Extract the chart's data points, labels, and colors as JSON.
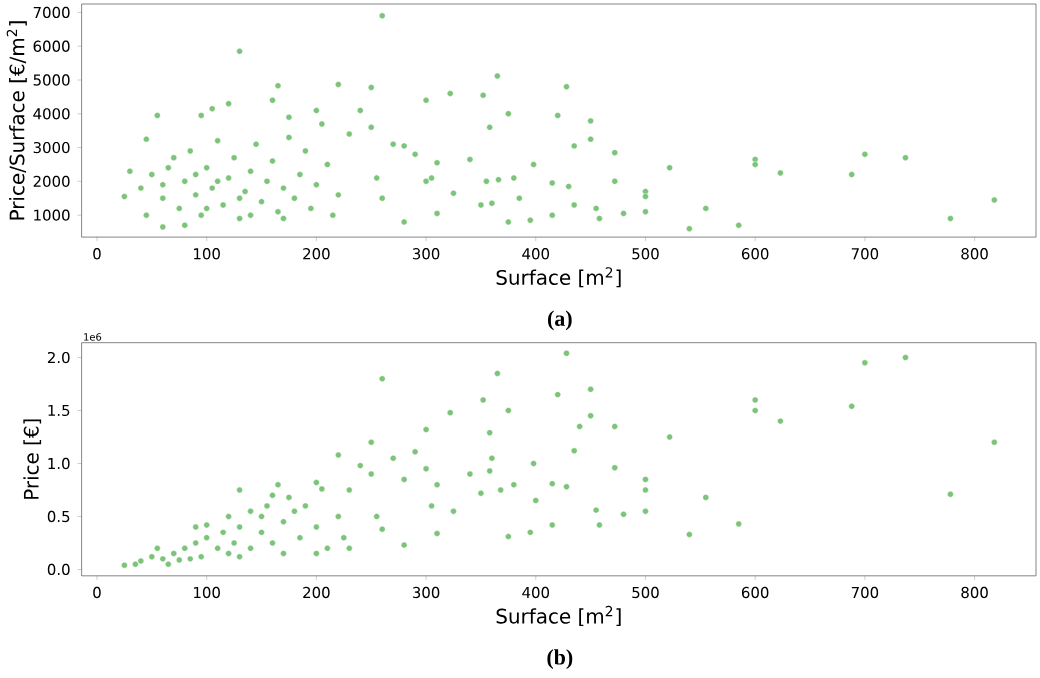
{
  "chart_data": [
    {
      "type": "scatter",
      "xlabel": "Surface [m$^{2}$]",
      "ylabel": "Price/Surface [€/m$^{2}$]",
      "annotations": [
        "(a)"
      ],
      "marker": "circle",
      "color": "#7cc47a",
      "xlim": [
        -14,
        856
      ],
      "ylim": [
        350,
        7250
      ],
      "xticks": [
        0,
        100,
        200,
        300,
        400,
        500,
        600,
        700,
        800
      ],
      "yticks": [
        1000,
        2000,
        3000,
        4000,
        5000,
        6000,
        7000
      ],
      "x": [
        260,
        130,
        365,
        428,
        220,
        250,
        165,
        322,
        300,
        352,
        450,
        450,
        435,
        420,
        375,
        358,
        472,
        472,
        522,
        600,
        600,
        623,
        688,
        700,
        737,
        818,
        778,
        585,
        540,
        555,
        500,
        500,
        500,
        480,
        458,
        455,
        415,
        395,
        375,
        398,
        415,
        430,
        435,
        385,
        380,
        366,
        355,
        350,
        360,
        340,
        310,
        305,
        300,
        310,
        280,
        290,
        325,
        270,
        280,
        240,
        230,
        255,
        260,
        250,
        200,
        205,
        160,
        175,
        55,
        45,
        95,
        105,
        120,
        25,
        30,
        60,
        80,
        40,
        50,
        60,
        70,
        75,
        80,
        85,
        90,
        95,
        100,
        105,
        110,
        115,
        120,
        125,
        130,
        135,
        140,
        145,
        150,
        155,
        160,
        165,
        170,
        175,
        180,
        185,
        190,
        195,
        200,
        210,
        215,
        220,
        45,
        65,
        100,
        140,
        170,
        110,
        130,
        90,
        60
      ],
      "values": [
        6900,
        5850,
        5120,
        4800,
        4870,
        4780,
        4830,
        4600,
        4400,
        4550,
        3790,
        3250,
        3050,
        3950,
        4000,
        3600,
        2850,
        2000,
        2400,
        2650,
        2500,
        2250,
        2200,
        2800,
        2700,
        1450,
        900,
        700,
        600,
        1200,
        1700,
        1550,
        1100,
        1050,
        900,
        1200,
        1000,
        850,
        800,
        2500,
        1950,
        1850,
        1300,
        1500,
        2100,
        2050,
        2000,
        1300,
        1350,
        2650,
        2550,
        2100,
        2000,
        1050,
        800,
        2800,
        1650,
        3100,
        3050,
        4100,
        3400,
        2100,
        1500,
        3600,
        4100,
        3700,
        4400,
        3900,
        3950,
        3250,
        3950,
        4150,
        4300,
        1550,
        2300,
        650,
        700,
        1800,
        2200,
        1500,
        2700,
        1200,
        2000,
        2900,
        1600,
        1000,
        2400,
        1800,
        3200,
        1300,
        2100,
        2700,
        900,
        1700,
        2300,
        3100,
        1400,
        2000,
        2600,
        1100,
        1800,
        3300,
        1500,
        2200,
        2900,
        1200,
        1900,
        2500,
        1000,
        1600,
        1000,
        2400,
        1200,
        1000,
        900,
        2000,
        1500,
        2200,
        1900
      ]
    },
    {
      "type": "scatter",
      "xlabel": "Surface [m$^{2}$]",
      "ylabel": "Price [€]",
      "annotations": [
        "1e6",
        "(b)"
      ],
      "marker": "circle",
      "color": "#7cc47a",
      "xlim": [
        -14,
        856
      ],
      "ylim": [
        -0.06,
        2.14
      ],
      "xticks": [
        0,
        100,
        200,
        300,
        400,
        500,
        600,
        700,
        800
      ],
      "yticks": [
        {
          "value": 0,
          "label": "0.0"
        },
        0.5,
        {
          "value": 1,
          "label": "1.0"
        },
        1.5,
        {
          "value": 2,
          "label": "2.0"
        }
      ],
      "x": [
        428,
        737,
        700,
        688,
        600,
        600,
        623,
        818,
        778,
        585,
        540,
        555,
        522,
        500,
        500,
        500,
        480,
        458,
        455,
        472,
        472,
        450,
        450,
        440,
        435,
        420,
        428,
        415,
        415,
        395,
        398,
        400,
        365,
        352,
        375,
        358,
        360,
        358,
        375,
        380,
        368,
        350,
        340,
        322,
        300,
        290,
        260,
        250,
        220,
        300,
        310,
        305,
        310,
        325,
        280,
        270,
        280,
        240,
        250,
        255,
        260,
        230,
        200,
        205,
        165,
        130,
        175,
        160,
        25,
        35,
        40,
        50,
        55,
        60,
        70,
        75,
        80,
        90,
        95,
        100,
        100,
        110,
        115,
        120,
        125,
        130,
        140,
        140,
        150,
        155,
        160,
        170,
        180,
        185,
        190,
        200,
        210,
        220,
        225,
        230,
        200,
        170,
        130,
        150,
        90,
        120,
        65,
        85
      ],
      "values": [
        2.04,
        2.0,
        1.95,
        1.54,
        1.6,
        1.5,
        1.4,
        1.2,
        0.71,
        0.43,
        0.33,
        0.68,
        1.25,
        0.85,
        0.75,
        0.55,
        0.52,
        0.42,
        0.56,
        1.35,
        0.96,
        1.7,
        1.45,
        1.35,
        1.12,
        1.65,
        0.78,
        0.81,
        0.42,
        0.35,
        1.0,
        0.65,
        1.85,
        1.6,
        1.5,
        1.29,
        1.05,
        0.93,
        0.31,
        0.8,
        0.75,
        0.72,
        0.9,
        1.48,
        1.32,
        1.11,
        1.8,
        1.2,
        1.08,
        0.95,
        0.8,
        0.6,
        0.34,
        0.55,
        0.23,
        1.05,
        0.85,
        0.98,
        0.9,
        0.5,
        0.38,
        0.75,
        0.82,
        0.76,
        0.8,
        0.75,
        0.68,
        0.7,
        0.04,
        0.05,
        0.08,
        0.12,
        0.2,
        0.1,
        0.15,
        0.09,
        0.2,
        0.25,
        0.12,
        0.3,
        0.42,
        0.2,
        0.35,
        0.5,
        0.25,
        0.4,
        0.55,
        0.2,
        0.35,
        0.6,
        0.25,
        0.45,
        0.55,
        0.3,
        0.6,
        0.4,
        0.2,
        0.5,
        0.3,
        0.2,
        0.15,
        0.15,
        0.12,
        0.5,
        0.4,
        0.15,
        0.05,
        0.1
      ]
    }
  ]
}
